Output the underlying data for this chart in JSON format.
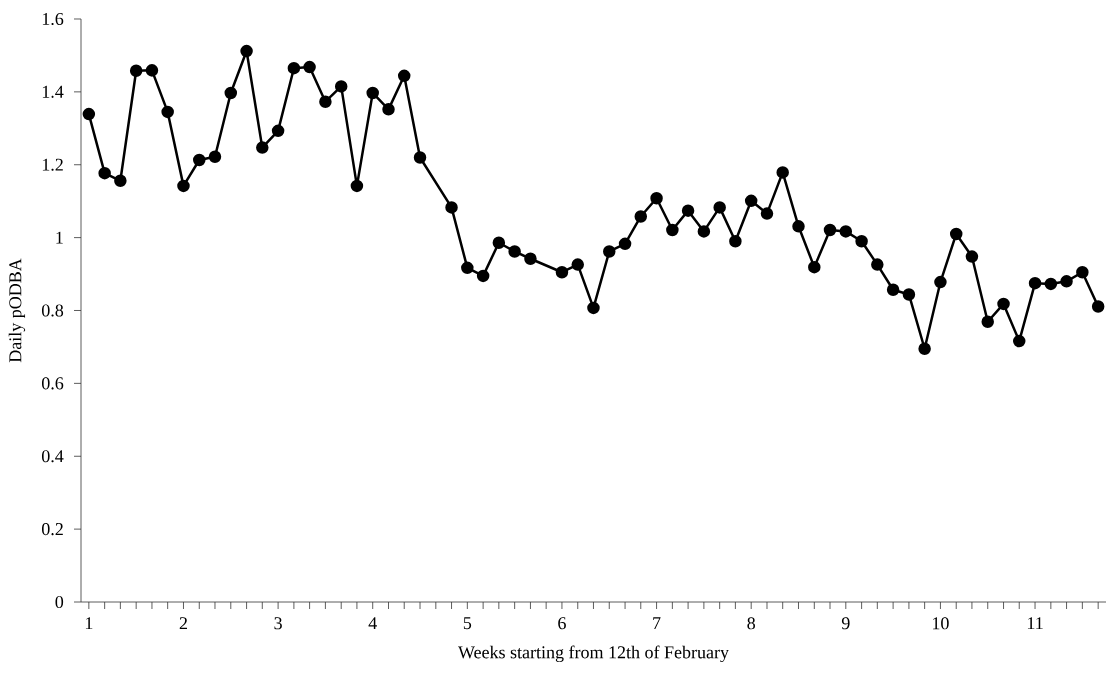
{
  "chart_data": {
    "type": "line",
    "xlabel": "Weeks starting from 12th of February",
    "ylabel": "Daily pODBA",
    "x": [
      1,
      1.167,
      1.333,
      1.5,
      1.667,
      1.833,
      2,
      2.167,
      2.333,
      2.5,
      2.667,
      2.833,
      3,
      3.167,
      3.333,
      3.5,
      3.667,
      3.833,
      4,
      4.167,
      4.333,
      4.5,
      4.833,
      5,
      5.167,
      5.333,
      5.5,
      5.667,
      6,
      6.167,
      6.333,
      6.5,
      6.667,
      6.833,
      7,
      7.167,
      7.333,
      7.5,
      7.667,
      7.833,
      8,
      8.167,
      8.333,
      8.5,
      8.667,
      8.833,
      9,
      9.167,
      9.333,
      9.5,
      9.667,
      9.833,
      10,
      10.167,
      10.333,
      10.5,
      10.667,
      10.833,
      11,
      11.167,
      11.333,
      11.5,
      11.667
    ],
    "series": [
      {
        "color": "#000000",
        "values": [
          1.339,
          1.177,
          1.156,
          1.458,
          1.459,
          1.345,
          1.142,
          1.213,
          1.222,
          1.397,
          1.512,
          1.247,
          1.293,
          1.465,
          1.468,
          1.373,
          1.415,
          1.142,
          1.397,
          1.352,
          1.444,
          1.22,
          1.083,
          0.917,
          0.895,
          0.986,
          0.962,
          0.942,
          0.905,
          0.926,
          0.807,
          0.962,
          0.983,
          1.058,
          1.108,
          1.021,
          1.074,
          1.017,
          1.083,
          0.99,
          1.101,
          1.066,
          1.179,
          1.031,
          0.919,
          1.021,
          1.017,
          0.99,
          0.926,
          0.857,
          0.844,
          0.695,
          0.878,
          1.01,
          0.948,
          0.769,
          0.818,
          0.716,
          0.875,
          0.873,
          0.88,
          0.905,
          0.811
        ]
      }
    ],
    "xlim": [
      0.917,
      11.75
    ],
    "xticks": [
      1,
      {
        "value": 1.167,
        "label": null
      },
      {
        "value": 1.333,
        "label": null
      },
      {
        "value": 1.5,
        "label": null
      },
      {
        "value": 1.667,
        "label": null
      },
      {
        "value": 1.833,
        "label": null
      },
      2,
      {
        "value": 2.167,
        "label": null
      },
      {
        "value": 2.333,
        "label": null
      },
      {
        "value": 2.5,
        "label": null
      },
      {
        "value": 2.667,
        "label": null
      },
      {
        "value": 2.833,
        "label": null
      },
      3,
      {
        "value": 3.167,
        "label": null
      },
      {
        "value": 3.333,
        "label": null
      },
      {
        "value": 3.5,
        "label": null
      },
      {
        "value": 3.667,
        "label": null
      },
      {
        "value": 3.833,
        "label": null
      },
      4,
      {
        "value": 4.167,
        "label": null
      },
      {
        "value": 4.333,
        "label": null
      },
      {
        "value": 4.5,
        "label": null
      },
      {
        "value": 4.667,
        "label": null
      },
      {
        "value": 4.833,
        "label": null
      },
      5,
      {
        "value": 5.167,
        "label": null
      },
      {
        "value": 5.333,
        "label": null
      },
      {
        "value": 5.5,
        "label": null
      },
      {
        "value": 5.667,
        "label": null
      },
      {
        "value": 5.833,
        "label": null
      },
      6,
      {
        "value": 6.167,
        "label": null
      },
      {
        "value": 6.333,
        "label": null
      },
      {
        "value": 6.5,
        "label": null
      },
      {
        "value": 6.667,
        "label": null
      },
      {
        "value": 6.833,
        "label": null
      },
      7,
      {
        "value": 7.167,
        "label": null
      },
      {
        "value": 7.333,
        "label": null
      },
      {
        "value": 7.5,
        "label": null
      },
      {
        "value": 7.667,
        "label": null
      },
      {
        "value": 7.833,
        "label": null
      },
      8,
      {
        "value": 8.167,
        "label": null
      },
      {
        "value": 8.333,
        "label": null
      },
      {
        "value": 8.5,
        "label": null
      },
      {
        "value": 8.667,
        "label": null
      },
      {
        "value": 8.833,
        "label": null
      },
      9,
      {
        "value": 9.167,
        "label": null
      },
      {
        "value": 9.333,
        "label": null
      },
      {
        "value": 9.5,
        "label": null
      },
      {
        "value": 9.667,
        "label": null
      },
      {
        "value": 9.833,
        "label": null
      },
      10,
      {
        "value": 10.167,
        "label": null
      },
      {
        "value": 10.333,
        "label": null
      },
      {
        "value": 10.5,
        "label": null
      },
      {
        "value": 10.667,
        "label": null
      },
      {
        "value": 10.833,
        "label": null
      },
      11,
      {
        "value": 11.167,
        "label": null
      },
      {
        "value": 11.333,
        "label": null
      },
      {
        "value": 11.5,
        "label": null
      },
      {
        "value": 11.667,
        "label": null
      }
    ],
    "ylim": [
      0,
      1.6
    ],
    "yticks": [
      0,
      0.2,
      0.4,
      0.6,
      0.8,
      1,
      1.2,
      1.4,
      1.6
    ],
    "marker": "circle",
    "line_style": "solid"
  }
}
